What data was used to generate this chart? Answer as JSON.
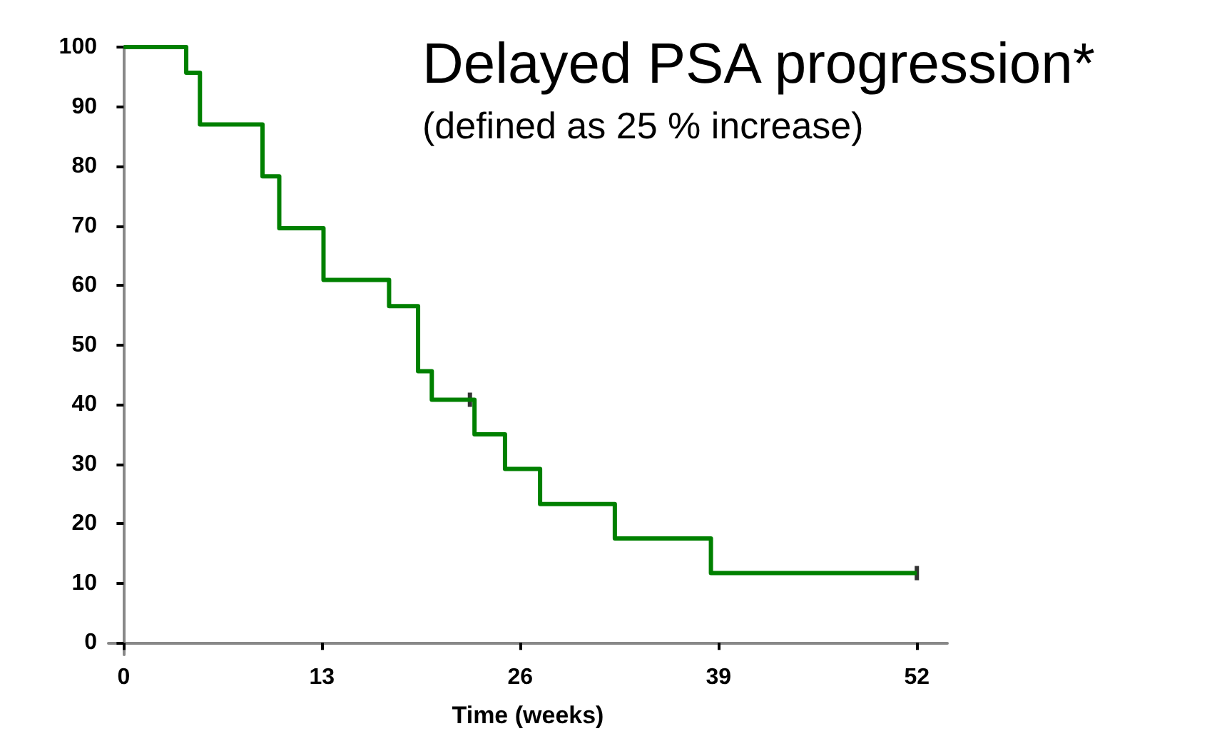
{
  "chart_data": {
    "type": "step",
    "title": "Delayed PSA progression*",
    "subtitle": "(defined as 25 % increase)",
    "xlabel": "Time (weeks)",
    "series": [
      {
        "color": "#008000",
        "x": [
          0,
          4.1,
          5,
          9.1,
          10.2,
          13.1,
          17.4,
          19.3,
          20.2,
          23,
          25,
          27.3,
          32.2,
          38.5,
          52
        ],
        "values": [
          100,
          95.7,
          87,
          78.3,
          69.6,
          60.9,
          56.5,
          45.6,
          40.8,
          35,
          29.2,
          23.3,
          17.5,
          11.7,
          11.7
        ]
      },
      {
        "type": "scatter",
        "color": "#000000",
        "x": [
          22.7,
          52
        ],
        "values": [
          40.8,
          11.7
        ]
      }
    ],
    "xlim": [
      -1,
      54
    ],
    "xticks": [
      0,
      13,
      26,
      39,
      52
    ],
    "ylim": [
      -2,
      100
    ],
    "yticks": [
      0,
      10,
      20,
      30,
      40,
      50,
      60,
      70,
      80,
      90,
      100
    ],
    "grid": false
  }
}
